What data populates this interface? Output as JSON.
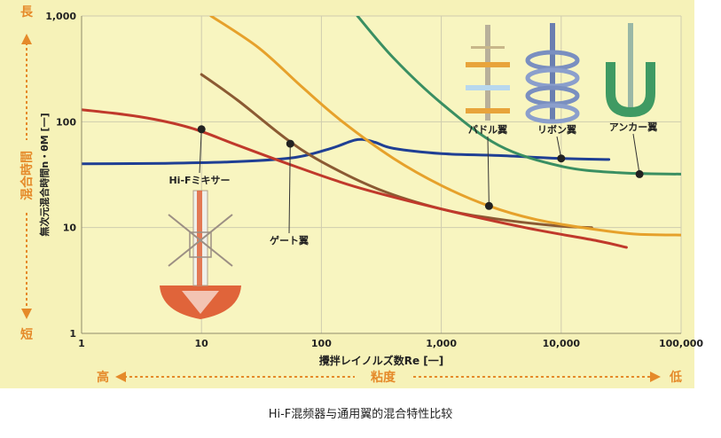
{
  "caption": "Hi-F混频器与通用翼的混合特性比较",
  "chart_data": {
    "type": "line",
    "xscale": "log",
    "yscale": "log",
    "xlim": [
      1,
      100000
    ],
    "ylim": [
      1,
      1000
    ],
    "grid": true,
    "x_ticks": [
      1,
      10,
      100,
      1000,
      10000,
      100000
    ],
    "x_tick_labels": [
      "1",
      "10",
      "100",
      "1,000",
      "10,000",
      "100,000"
    ],
    "y_ticks": [
      1,
      10,
      100,
      1000
    ],
    "y_tick_labels": [
      "1",
      "10",
      "100",
      "1,000"
    ],
    "xlabel": "攪拌レイノルズ数Re [一]",
    "ylabel": "無次元混合時間n・θM [一]",
    "left_axis": {
      "title": "混合時間",
      "top": "長",
      "bottom": "短"
    },
    "bottom_axis": {
      "title": "粘度",
      "left": "高",
      "right": "低"
    },
    "series": [
      {
        "name": "Hi-Fミキサー",
        "color": "#1f3f94",
        "x": [
          1,
          5,
          20,
          60,
          120,
          180,
          220,
          280,
          400,
          1000,
          3000,
          10000,
          25000
        ],
        "y": [
          40,
          40.5,
          42,
          46,
          56,
          66,
          68,
          64,
          56,
          50,
          48,
          45,
          44
        ]
      },
      {
        "name": "ゲート翼",
        "color": "#8b5a33",
        "x": [
          10,
          20,
          50,
          100,
          300,
          1000,
          3000,
          10000,
          18000
        ],
        "y": [
          280,
          160,
          70,
          42,
          23,
          15,
          12,
          10.3,
          10
        ]
      },
      {
        "name": "パドル翼",
        "color": "#e6a12b",
        "x": [
          12,
          30,
          70,
          150,
          400,
          1000,
          2500,
          6000,
          15000,
          40000,
          100000
        ],
        "y": [
          1000,
          500,
          210,
          100,
          45,
          25,
          16,
          12,
          10,
          8.7,
          8.5
        ]
      },
      {
        "name": "リボン翼",
        "color": "#c0392b",
        "x": [
          1,
          3,
          8,
          20,
          60,
          200,
          1000,
          5000,
          20000,
          35000
        ],
        "y": [
          130,
          112,
          88,
          60,
          38,
          24,
          15,
          10,
          7.5,
          6.5
        ]
      },
      {
        "name": "アンカー翼",
        "color": "#3a8f62",
        "x": [
          200,
          400,
          1000,
          3000,
          10000,
          30000,
          100000
        ],
        "y": [
          1000,
          400,
          150,
          60,
          38,
          33,
          32
        ]
      }
    ],
    "callouts": [
      {
        "series": "Hi-Fミキサー",
        "label": "Hi-Fミキサー",
        "point": [
          10,
          85
        ]
      },
      {
        "series": "ゲート翼",
        "label": "ゲート翼",
        "point": [
          55,
          62
        ]
      },
      {
        "series": "パドル翼",
        "label": "パドル翼",
        "point": [
          2500,
          16
        ]
      },
      {
        "series": "リボン翼",
        "label": "リボン翼",
        "point": [
          10000,
          45
        ]
      },
      {
        "series": "アンカー翼",
        "label": "アンカー翼",
        "point": [
          45000,
          32
        ]
      }
    ],
    "colors": {
      "plot_bg": "#f8f5c0",
      "outer_bg": "#f6f2b8",
      "grid": "#cfccae",
      "accent_orange": "#e58a2a"
    }
  },
  "icons": {
    "hi_f": "hi-f-mixer-impeller-icon",
    "paddle": "paddle-impeller-icon",
    "ribbon": "ribbon-impeller-icon",
    "anchor": "anchor-impeller-icon"
  }
}
